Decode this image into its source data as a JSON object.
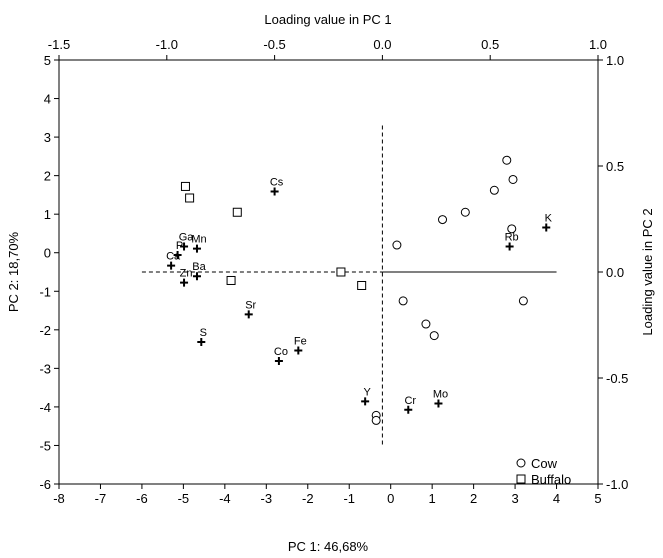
{
  "chart_data": {
    "type": "scatter",
    "title": "",
    "xlabel": "PC 1: 46,68%",
    "ylabel": "PC 2: 18,70%",
    "x2label": "Loading value in PC 1",
    "y2label": "Loading value in PC 2",
    "xlim": [
      -8,
      5
    ],
    "ylim": [
      -6,
      5
    ],
    "x2lim": [
      -1.5,
      1.0
    ],
    "y2lim": [
      -1.0,
      1.0
    ],
    "x_ticks": [
      "-8",
      "-7",
      "-6",
      "-5",
      "-4",
      "-3",
      "-2",
      "-1",
      "0",
      "1",
      "2",
      "3",
      "4",
      "5"
    ],
    "y_ticks": [
      "5",
      "4",
      "3",
      "2",
      "1",
      "0",
      "-1",
      "-2",
      "-3",
      "-4",
      "-5",
      "-6"
    ],
    "x2_ticks": [
      "-1.5",
      "-1.0",
      "-0.5",
      "0.0",
      "0.5",
      "1.0"
    ],
    "y2_ticks": [
      "1.0",
      "0.5",
      "0.0",
      "-0.5",
      "-1.0"
    ],
    "legend_position": "bottom-right",
    "series": [
      {
        "name": "Cow",
        "marker": "circle",
        "points": [
          {
            "x": 2.8,
            "y": 2.4
          },
          {
            "x": 2.95,
            "y": 1.9
          },
          {
            "x": 2.5,
            "y": 1.62
          },
          {
            "x": 1.8,
            "y": 1.05
          },
          {
            "x": 1.25,
            "y": 0.86
          },
          {
            "x": 2.92,
            "y": 0.62
          },
          {
            "x": 0.15,
            "y": 0.2
          },
          {
            "x": 0.3,
            "y": -1.25
          },
          {
            "x": 3.2,
            "y": -1.25
          },
          {
            "x": 0.85,
            "y": -1.85
          },
          {
            "x": 1.05,
            "y": -2.15
          },
          {
            "x": -0.35,
            "y": -4.22
          },
          {
            "x": -0.35,
            "y": -4.35
          }
        ]
      },
      {
        "name": "Buffalo",
        "marker": "square",
        "points": [
          {
            "x": -4.95,
            "y": 1.72
          },
          {
            "x": -4.85,
            "y": 1.42
          },
          {
            "x": -3.7,
            "y": 1.05
          },
          {
            "x": -3.85,
            "y": -0.72
          },
          {
            "x": -1.2,
            "y": -0.5
          },
          {
            "x": -0.7,
            "y": -0.85
          }
        ]
      }
    ],
    "loadings": [
      {
        "label": "Cs",
        "x": -0.5,
        "y": 0.38
      },
      {
        "label": "Ga",
        "x": -0.92,
        "y": 0.12
      },
      {
        "label": "Mn",
        "x": -0.86,
        "y": 0.11
      },
      {
        "label": "P",
        "x": -0.95,
        "y": 0.08
      },
      {
        "label": "Ca",
        "x": -0.98,
        "y": 0.03
      },
      {
        "label": "Ba",
        "x": -0.86,
        "y": -0.02
      },
      {
        "label": "Zn",
        "x": -0.92,
        "y": -0.05
      },
      {
        "label": "Sr",
        "x": -0.62,
        "y": -0.2
      },
      {
        "label": "S",
        "x": -0.84,
        "y": -0.33
      },
      {
        "label": "Fe",
        "x": -0.39,
        "y": -0.37
      },
      {
        "label": "Co",
        "x": -0.48,
        "y": -0.42
      },
      {
        "label": "Y",
        "x": -0.08,
        "y": -0.61
      },
      {
        "label": "Cr",
        "x": 0.12,
        "y": -0.65
      },
      {
        "label": "Mo",
        "x": 0.26,
        "y": -0.62
      },
      {
        "label": "Rb",
        "x": 0.59,
        "y": 0.12
      },
      {
        "label": "K",
        "x": 0.76,
        "y": 0.21
      }
    ]
  }
}
